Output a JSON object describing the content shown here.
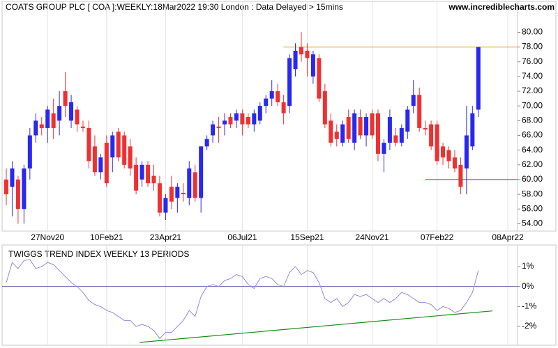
{
  "chart_data": [
    {
      "type": "candlestick",
      "title": "COATS GROUP PLC [ COA ]:WEEKLY:18Mar2022 19:30 London : Data Delayed > 15mins",
      "source": "www.incrediblecharts.com",
      "categories": [
        null,
        null,
        null,
        null,
        null,
        null,
        null,
        "27Nov20",
        null,
        null,
        null,
        null,
        null,
        null,
        null,
        null,
        null,
        "10Feb21",
        null,
        null,
        null,
        null,
        null,
        null,
        null,
        null,
        null,
        "23Apr21",
        null,
        null,
        null,
        null,
        null,
        null,
        null,
        null,
        null,
        null,
        null,
        null,
        "06Jul21",
        null,
        null,
        null,
        null,
        null,
        null,
        null,
        null,
        null,
        null,
        "15Sep21",
        null,
        null,
        null,
        null,
        null,
        null,
        null,
        null,
        null,
        null,
        "24Nov21",
        null,
        null,
        null,
        null,
        null,
        null,
        null,
        null,
        null,
        null,
        "07Feb22",
        null,
        null,
        null,
        null,
        null,
        null,
        null,
        null,
        null,
        null,
        null,
        "08Apr22"
      ],
      "open": [
        60,
        59,
        60,
        56,
        61.5,
        66,
        67.5,
        67,
        69,
        68,
        72,
        68,
        69.5,
        67.2,
        67,
        64.5,
        61,
        65,
        63,
        66.5,
        66,
        64.5,
        62,
        60,
        62,
        60.5,
        59.5,
        55.5,
        59,
        57.5,
        58.2,
        57.5,
        61,
        57.5,
        64.5,
        66,
        67.2,
        67.5,
        68.5,
        68,
        69,
        68.5,
        67.5,
        68,
        70,
        71,
        72,
        70.5,
        70,
        75,
        78,
        77.5,
        74,
        76.5,
        72,
        68,
        66.5,
        65,
        68.5,
        65,
        68.5,
        66,
        69,
        69,
        63.5,
        65,
        66,
        65,
        66.5,
        70,
        71.5,
        67,
        67.5,
        67.5,
        64.5,
        64,
        63,
        62,
        61.5,
        64.5,
        69.5,
        null,
        null,
        null,
        null,
        null
      ],
      "high": [
        61.5,
        62.5,
        60.5,
        62,
        67,
        69,
        68.5,
        70,
        71,
        72,
        74.6,
        71.5,
        70,
        68,
        68,
        66,
        63.5,
        66,
        66.5,
        67,
        66.5,
        65.5,
        63,
        62.5,
        62.5,
        62,
        60.5,
        58,
        60.5,
        59.5,
        59.5,
        62.5,
        62,
        64.5,
        66,
        68,
        68.5,
        69,
        69,
        69.5,
        69.5,
        69,
        69.5,
        70.5,
        71.5,
        73.5,
        73,
        71.5,
        77,
        78.5,
        80,
        78.5,
        77.5,
        77,
        73,
        69,
        67.5,
        68,
        69.5,
        69.5,
        69.5,
        69,
        69.5,
        69.5,
        65.5,
        69.5,
        67,
        67.5,
        70,
        73.5,
        72.5,
        68,
        68,
        68,
        65,
        64.5,
        64,
        63,
        70,
        70,
        78,
        null,
        null,
        null,
        null,
        null
      ],
      "low": [
        56.5,
        55,
        54,
        54,
        60,
        65,
        66,
        65,
        65.5,
        66,
        68.5,
        67,
        66.5,
        66.5,
        61.5,
        60.5,
        60,
        59,
        61,
        62.5,
        61.5,
        60.5,
        58,
        59,
        59,
        58.5,
        55,
        54.5,
        56,
        55.5,
        57,
        56.5,
        57,
        55.5,
        64,
        65,
        65,
        66,
        67,
        67,
        66,
        67,
        66.5,
        67.5,
        69,
        70,
        70,
        67.5,
        69,
        74,
        76,
        74,
        73,
        70.5,
        67,
        64.5,
        64.5,
        64.5,
        65,
        64,
        65.5,
        64.5,
        65.5,
        62.5,
        61,
        64,
        64.5,
        64.5,
        65.5,
        69,
        66.5,
        66,
        64,
        62,
        62,
        61.5,
        61,
        58,
        58,
        64,
        68.5,
        null,
        null,
        null,
        null,
        null
      ],
      "close": [
        58,
        61.5,
        56,
        61.5,
        66,
        68,
        67,
        69.5,
        67,
        70,
        70,
        70.5,
        67.5,
        67,
        62.5,
        61,
        63,
        59.5,
        66,
        63,
        62,
        61.5,
        58.5,
        62,
        59.5,
        59.5,
        55.5,
        57.5,
        57,
        59,
        58,
        61.5,
        57.5,
        64.5,
        65.5,
        67.5,
        67,
        68,
        67.5,
        69,
        67.5,
        67.5,
        69,
        70,
        71,
        72,
        70.5,
        69,
        76.5,
        77.5,
        77,
        76.5,
        77,
        71,
        67.5,
        65,
        65.5,
        67.5,
        65.5,
        69,
        66,
        68.5,
        66,
        63.5,
        65,
        68.5,
        65,
        67,
        69.5,
        71.5,
        67,
        66.8,
        64.5,
        62.5,
        63,
        62.5,
        61.5,
        59,
        66,
        69,
        78,
        null,
        null,
        null,
        null,
        null
      ],
      "up_color": "#2828f0",
      "down_color": "#f03030",
      "ylim": [
        53,
        84.2
      ],
      "yticks": [
        {
          "value": 54,
          "label": "54.00"
        },
        {
          "value": 56,
          "label": "56.00"
        },
        {
          "value": 58,
          "label": "58.00"
        },
        {
          "value": 60,
          "label": "60.00"
        },
        {
          "value": 62,
          "label": "62.00"
        },
        {
          "value": 64,
          "label": "64.00"
        },
        {
          "value": 66,
          "label": "66.00"
        },
        {
          "value": 68,
          "label": "68.00"
        },
        {
          "value": 70,
          "label": "70.00"
        },
        {
          "value": 72,
          "label": "72.00"
        },
        {
          "value": 74,
          "label": "74.00"
        },
        {
          "value": 76,
          "label": "76.00"
        },
        {
          "value": 78,
          "label": "78.00"
        },
        {
          "value": 80,
          "label": "80.00"
        }
      ],
      "levels": [
        {
          "value": 78,
          "color": "#e0a030",
          "start": 47
        },
        {
          "value": 60,
          "color": "#e02020",
          "start": 71
        }
      ],
      "grid": true
    },
    {
      "type": "line",
      "title": "TWIGGS TREND INDEX WEEKLY 13 PERIODS",
      "values": [
        0.2,
        1.2,
        0.9,
        1.3,
        1.35,
        0.9,
        1.0,
        1.2,
        1.1,
        0.8,
        0.5,
        0.2,
        0.0,
        -0.3,
        -0.7,
        -0.9,
        -1.0,
        -1.2,
        -1.3,
        -1.5,
        -1.7,
        -1.7,
        -2.0,
        -1.9,
        -2.0,
        -2.2,
        -2.6,
        -2.3,
        -2.3,
        -2.0,
        -1.7,
        -1.2,
        -1.5,
        -0.5,
        0.0,
        0.1,
        0.0,
        0.3,
        0.4,
        0.6,
        0.5,
        0.1,
        -0.1,
        0.4,
        0.5,
        0.4,
        0.1,
        0.0,
        0.7,
        1.0,
        0.6,
        0.8,
        0.7,
        0.2,
        -0.6,
        -0.8,
        -0.6,
        -1.0,
        -0.8,
        -0.4,
        -0.5,
        -0.4,
        -0.6,
        -0.8,
        -0.6,
        -0.8,
        -0.6,
        -0.3,
        -0.4,
        -0.6,
        -0.8,
        -0.8,
        -0.9,
        -1.2,
        -1.0,
        -1.1,
        -1.3,
        -1.2,
        -0.8,
        -0.3,
        0.8
      ],
      "color": "#8c8cdc",
      "ylim": [
        -2.94,
        2.08
      ],
      "yticks": [
        {
          "value": 1,
          "label": "1%"
        },
        {
          "value": 0,
          "label": "0%"
        },
        {
          "value": -1,
          "label": "-1%"
        },
        {
          "value": -2,
          "label": "-2%"
        }
      ],
      "zero_line": true,
      "zero_color": "#6a6aa8",
      "trendline": {
        "color": "#1a8a1a",
        "points": [
          [
            22.6,
            -2.8
          ],
          [
            82.4,
            -1.22
          ]
        ]
      },
      "grid": true
    }
  ]
}
